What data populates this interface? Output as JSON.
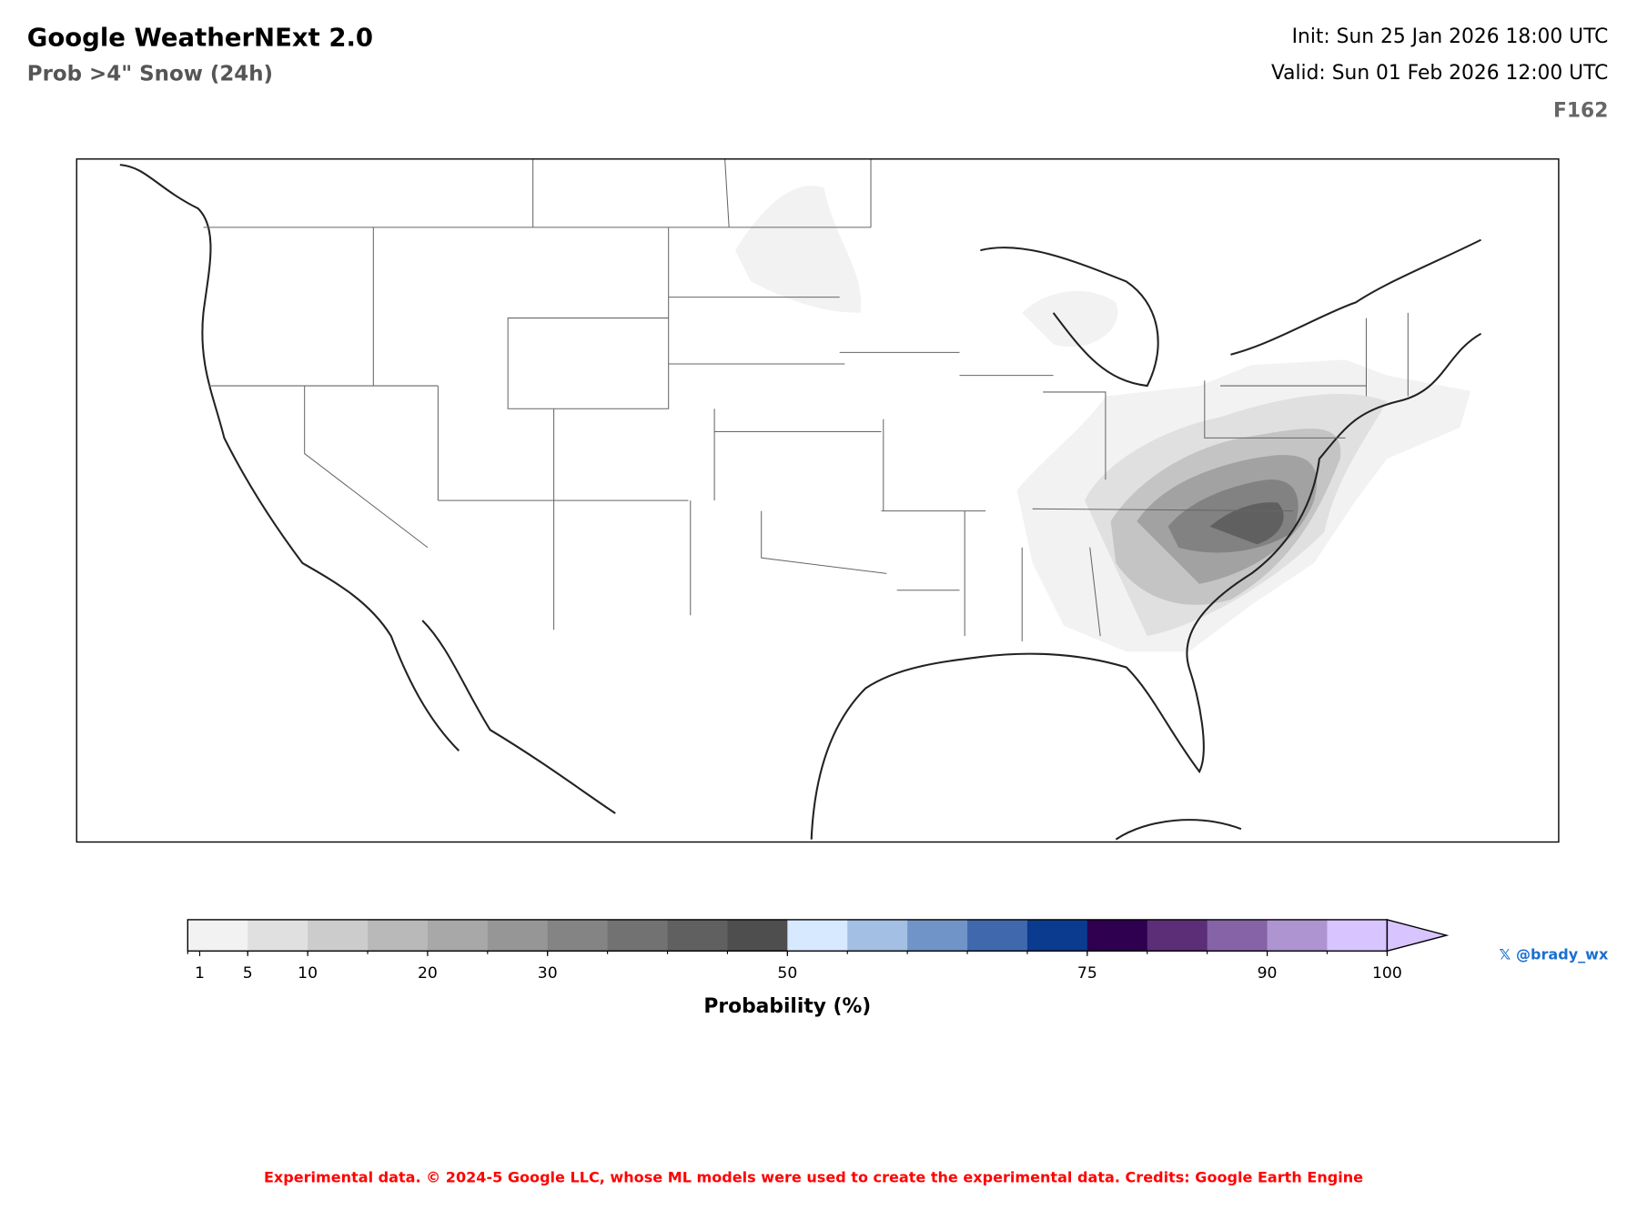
{
  "header": {
    "title": "Google WeatherNExt 2.0",
    "subtitle": "Prob >4\" Snow (24h)",
    "init": "Init: Sun 25 Jan 2026 18:00 UTC",
    "valid": "Valid: Sun 01 Feb 2026 12:00 UTC",
    "forecast_hour": "F162"
  },
  "colorbar": {
    "label": "Probability (%)",
    "range": [
      0,
      100
    ],
    "extend": "max",
    "tick_labels": [
      "1",
      "5",
      "10",
      "20",
      "30",
      "50",
      "75",
      "90",
      "100"
    ],
    "tick_values": [
      1,
      5,
      10,
      20,
      30,
      50,
      75,
      90,
      100
    ],
    "boundaries": [
      0,
      5,
      10,
      15,
      20,
      25,
      30,
      35,
      40,
      45,
      50,
      55,
      60,
      65,
      70,
      75,
      80,
      85,
      90,
      95,
      100
    ],
    "colors": [
      "#f2f2f2",
      "#e0e0e0",
      "#cccccc",
      "#b9b9b9",
      "#a8a8a8",
      "#969696",
      "#848484",
      "#727272",
      "#606060",
      "#4e4e4e",
      "#d6e9ff",
      "#a3bfe3",
      "#7094c8",
      "#3f68ad",
      "#0b3b8e",
      "#2e004f",
      "#5c2e77",
      "#8563a6",
      "#ae94d1",
      "#d8c4ff"
    ]
  },
  "credit_handle": "𝕏 @brady_wx",
  "footer": "Experimental data. © 2024-5 Google LLC, whose ML models were used to create the experimental data. Credits: Google Earth Engine"
}
